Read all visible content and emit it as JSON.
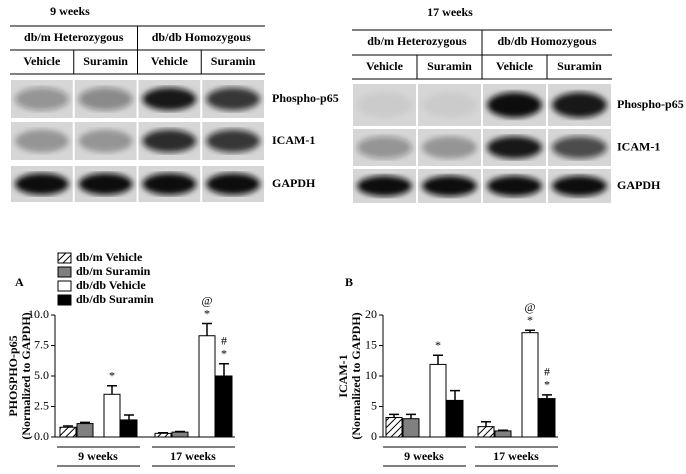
{
  "blots": [
    {
      "title": "9 weeks",
      "groups": [
        "db/m Heterozygous",
        "db/db Homozygous"
      ],
      "lanes": [
        "Vehicle",
        "Suramin",
        "Vehicle",
        "Suramin"
      ],
      "rows": [
        "Phospho-p65",
        "ICAM-1",
        "GAPDH"
      ]
    },
    {
      "title": "17 weeks",
      "groups": [
        "db/m Heterozygous",
        "db/db Homozygous"
      ],
      "lanes": [
        "Vehicle",
        "Suramin",
        "Vehicle",
        "Suramin"
      ],
      "rows": [
        "Phospho-p65",
        "ICAM-1",
        "GAPDH"
      ]
    }
  ],
  "chart_data": [
    {
      "type": "bar",
      "panel": "A",
      "ylabel": [
        "PHOSPHO-p65",
        "(Normalized to GAPDH)"
      ],
      "categories": [
        "9 weeks",
        "17 weeks"
      ],
      "ylim": [
        0,
        10
      ],
      "yticks": [
        {
          "value": 0,
          "label": "0.0"
        },
        {
          "value": 2.5,
          "label": "2.5"
        },
        {
          "value": 5,
          "label": "5.0"
        },
        {
          "value": 7.5,
          "label": "7.5"
        },
        {
          "value": 10,
          "label": "10.0"
        }
      ],
      "legend": "upper left",
      "series": [
        {
          "name": "db/m Vehicle",
          "color": "#000000",
          "hatch": true,
          "values": [
            0.8,
            0.3
          ],
          "errors": [
            0.1,
            0.05
          ]
        },
        {
          "name": "db/m Suramin",
          "color": "#808080",
          "values": [
            1.1,
            0.4
          ],
          "errors": [
            0.1,
            0.05
          ]
        },
        {
          "name": "db/db Vehicle",
          "color": "#ffffff",
          "values": [
            3.5,
            8.3
          ],
          "errors": [
            0.7,
            1.0
          ],
          "annotations": [
            [
              "*"
            ],
            [
              "@",
              "*"
            ]
          ]
        },
        {
          "name": "db/db Suramin",
          "color": "#000000",
          "values": [
            1.4,
            5.0
          ],
          "errors": [
            0.4,
            1.0
          ],
          "annotations": [
            null,
            [
              "#",
              "*"
            ]
          ]
        }
      ]
    },
    {
      "type": "bar",
      "panel": "B",
      "ylabel": [
        "ICAM-1",
        "(Normalized to GAPDH)"
      ],
      "categories": [
        "9 weeks",
        "17 weeks"
      ],
      "ylim": [
        0,
        20
      ],
      "yticks": [
        0,
        5,
        10,
        15,
        20
      ],
      "series": [
        {
          "color": "#000000",
          "hatch": true,
          "values": [
            3.2,
            1.7
          ],
          "errors": [
            0.5,
            0.8
          ]
        },
        {
          "color": "#808080",
          "values": [
            3.0,
            1.0
          ],
          "errors": [
            0.7,
            0.1
          ]
        },
        {
          "color": "#ffffff",
          "values": [
            11.9,
            17.1
          ],
          "errors": [
            1.5,
            0.4
          ],
          "annotations": [
            [
              "*"
            ],
            [
              "@",
              "*"
            ]
          ]
        },
        {
          "color": "#000000",
          "values": [
            6.0,
            6.3
          ],
          "errors": [
            1.6,
            0.6
          ],
          "annotations": [
            null,
            [
              "#",
              "*"
            ]
          ]
        }
      ]
    }
  ]
}
